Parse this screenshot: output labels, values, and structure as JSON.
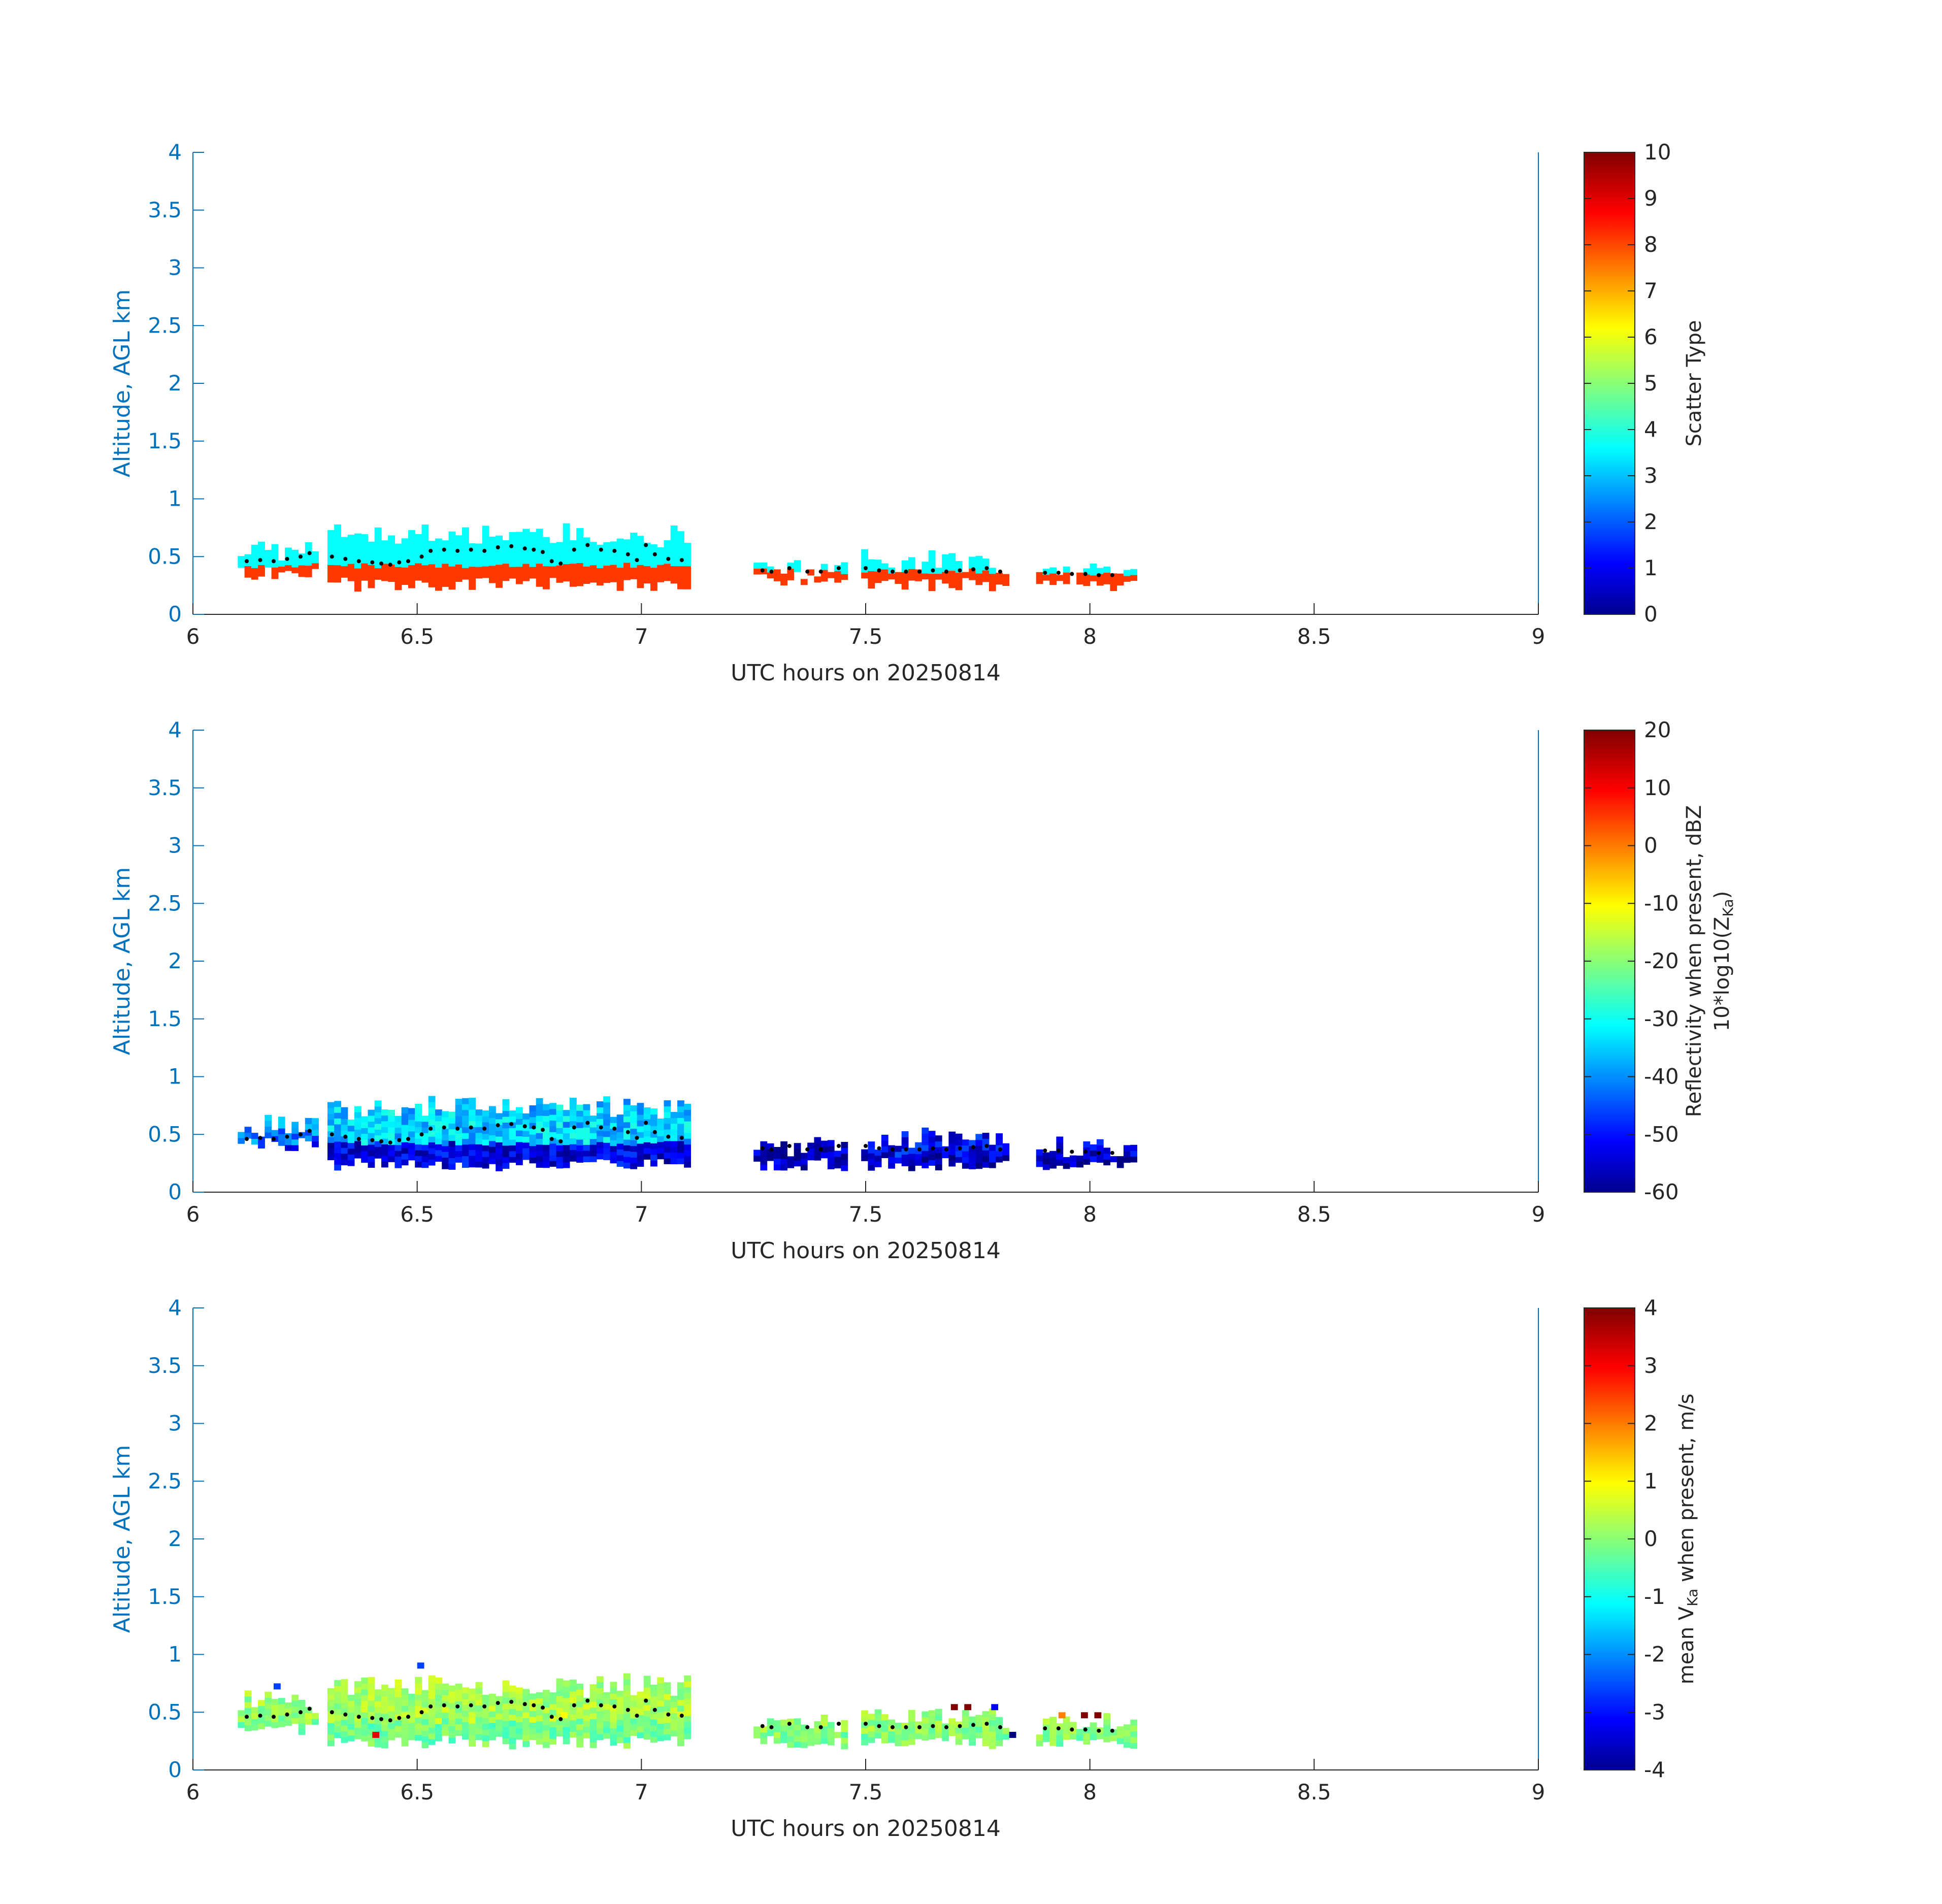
{
  "colors": {
    "axis_blue": "#0072BD",
    "text_dark": "#262626",
    "dots": "#000000"
  },
  "chart_data": [
    {
      "type": "heatmap",
      "xlabel": "UTC hours on 20250814",
      "ylabel": "Altitude, AGL km",
      "xlim": [
        6,
        9
      ],
      "ylim": [
        0,
        4
      ],
      "xticks": [
        "6",
        "6.5",
        "7",
        "7.5",
        "8",
        "8.5",
        "9"
      ],
      "yticks": [
        "0",
        "0.5",
        "1",
        "1.5",
        "2",
        "2.5",
        "3",
        "3.5",
        "4"
      ],
      "colorbar": {
        "label": "Scatter Type",
        "label_sub": "",
        "label_after": "",
        "label2": "",
        "label2_sub": "",
        "label2_after": "",
        "range": [
          0,
          10
        ],
        "ticks": [
          "0",
          "1",
          "2",
          "3",
          "4",
          "5",
          "6",
          "7",
          "8",
          "9",
          "10"
        ]
      },
      "segments": [
        {
          "x0": 6.1,
          "x1": 6.27,
          "top": 0.62,
          "bottom": 0.3,
          "value": 3.8,
          "low": 8.2,
          "lowTop": 0.4
        },
        {
          "x0": 6.3,
          "x1": 7.1,
          "top": 0.75,
          "bottom": 0.2,
          "value": 3.8,
          "low": 8.2,
          "lowTop": 0.4
        },
        {
          "x0": 7.25,
          "x1": 7.45,
          "top": 0.45,
          "bottom": 0.25,
          "value": 3.8,
          "low": 8.2,
          "lowTop": 0.35
        },
        {
          "x0": 7.49,
          "x1": 7.82,
          "top": 0.52,
          "bottom": 0.2,
          "value": 3.8,
          "low": 8.2,
          "lowTop": 0.35
        },
        {
          "x0": 7.88,
          "x1": 8.1,
          "top": 0.42,
          "bottom": 0.2,
          "value": 3.8,
          "low": 8.2,
          "lowTop": 0.32
        }
      ]
    },
    {
      "type": "heatmap",
      "xlabel": "UTC hours on 20250814",
      "ylabel": "Altitude, AGL km",
      "xlim": [
        6,
        9
      ],
      "ylim": [
        0,
        4
      ],
      "xticks": [
        "6",
        "6.5",
        "7",
        "7.5",
        "8",
        "8.5",
        "9"
      ],
      "yticks": [
        "0",
        "0.5",
        "1",
        "1.5",
        "2",
        "2.5",
        "3",
        "3.5",
        "4"
      ],
      "colorbar": {
        "label": "Reflectivity when present, dBZ",
        "label_sub": "",
        "label_after": "",
        "label2": "10*log10(Z",
        "label2_sub": "Ka",
        "label2_after": ")",
        "range": [
          -60,
          20
        ],
        "ticks": [
          "-60",
          "-50",
          "-40",
          "-30",
          "-20",
          "-10",
          "0",
          "10",
          "20"
        ]
      },
      "segments": [
        {
          "x0": 6.1,
          "x1": 6.27,
          "top": 0.65,
          "bottom": 0.35,
          "value": -40,
          "low": -52,
          "lowTop": 0.4
        },
        {
          "x0": 6.3,
          "x1": 7.1,
          "top": 0.8,
          "bottom": 0.18,
          "value": -34,
          "low": -52,
          "lowTop": 0.4
        },
        {
          "x0": 7.25,
          "x1": 7.45,
          "top": 0.45,
          "bottom": 0.18,
          "value": -55,
          "low": -55,
          "lowTop": 0.3
        },
        {
          "x0": 7.49,
          "x1": 7.82,
          "top": 0.52,
          "bottom": 0.18,
          "value": -50,
          "low": -55,
          "lowTop": 0.3
        },
        {
          "x0": 7.88,
          "x1": 8.1,
          "top": 0.45,
          "bottom": 0.18,
          "value": -52,
          "low": -55,
          "lowTop": 0.3
        }
      ]
    },
    {
      "type": "heatmap",
      "xlabel": "UTC hours on 20250814",
      "ylabel": "Altitude, AGL km",
      "xlim": [
        6,
        9
      ],
      "ylim": [
        0,
        4
      ],
      "xticks": [
        "6",
        "6.5",
        "7",
        "7.5",
        "8",
        "8.5",
        "9"
      ],
      "yticks": [
        "0",
        "0.5",
        "1",
        "1.5",
        "2",
        "2.5",
        "3",
        "3.5",
        "4"
      ],
      "colorbar": {
        "label": "mean V",
        "label_sub": "Ka",
        "label_after": " when present, m/s",
        "label2": "",
        "label2_sub": "",
        "label2_after": "",
        "range": [
          -4,
          4
        ],
        "ticks": [
          "-4",
          "-3",
          "-2",
          "-1",
          "0",
          "1",
          "2",
          "3",
          "4"
        ]
      },
      "segments": [
        {
          "x0": 6.1,
          "x1": 6.27,
          "top": 0.65,
          "bottom": 0.3,
          "value": 0.2,
          "low": 0.0,
          "lowTop": 0.4
        },
        {
          "x0": 6.3,
          "x1": 7.1,
          "top": 0.8,
          "bottom": 0.18,
          "value": 0.3,
          "low": -0.1,
          "lowTop": 0.4
        },
        {
          "x0": 7.25,
          "x1": 7.45,
          "top": 0.45,
          "bottom": 0.18,
          "value": 0.2,
          "low": 0.0,
          "lowTop": 0.3
        },
        {
          "x0": 7.49,
          "x1": 7.82,
          "top": 0.52,
          "bottom": 0.18,
          "value": 0.1,
          "low": 0.0,
          "lowTop": 0.3
        },
        {
          "x0": 7.88,
          "x1": 8.1,
          "top": 0.48,
          "bottom": 0.18,
          "value": 0.1,
          "low": 0.0,
          "lowTop": 0.3
        }
      ],
      "outliers": [
        {
          "x": 6.18,
          "y": 0.7,
          "value": -2.5
        },
        {
          "x": 6.4,
          "y": 0.28,
          "value": 3.2
        },
        {
          "x": 6.5,
          "y": 0.88,
          "value": -2.5
        },
        {
          "x": 6.82,
          "y": 0.45,
          "value": 1.0
        },
        {
          "x": 7.69,
          "y": 0.52,
          "value": 4.0
        },
        {
          "x": 7.72,
          "y": 0.52,
          "value": 4.0
        },
        {
          "x": 7.78,
          "y": 0.52,
          "value": -3.0
        },
        {
          "x": 7.82,
          "y": 0.28,
          "value": -4.0
        },
        {
          "x": 7.98,
          "y": 0.45,
          "value": 4.0
        },
        {
          "x": 8.01,
          "y": 0.45,
          "value": 4.0
        },
        {
          "x": 7.93,
          "y": 0.45,
          "value": 2.0
        }
      ]
    }
  ],
  "dots": [
    [
      6.12,
      0.46
    ],
    [
      6.15,
      0.47
    ],
    [
      6.18,
      0.46
    ],
    [
      6.21,
      0.48
    ],
    [
      6.24,
      0.5
    ],
    [
      6.26,
      0.53
    ],
    [
      6.31,
      0.5
    ],
    [
      6.34,
      0.48
    ],
    [
      6.37,
      0.46
    ],
    [
      6.4,
      0.45
    ],
    [
      6.42,
      0.44
    ],
    [
      6.44,
      0.43
    ],
    [
      6.46,
      0.45
    ],
    [
      6.48,
      0.46
    ],
    [
      6.51,
      0.5
    ],
    [
      6.53,
      0.55
    ],
    [
      6.56,
      0.56
    ],
    [
      6.59,
      0.55
    ],
    [
      6.62,
      0.56
    ],
    [
      6.65,
      0.55
    ],
    [
      6.68,
      0.58
    ],
    [
      6.71,
      0.59
    ],
    [
      6.74,
      0.57
    ],
    [
      6.76,
      0.56
    ],
    [
      6.78,
      0.54
    ],
    [
      6.8,
      0.46
    ],
    [
      6.82,
      0.44
    ],
    [
      6.85,
      0.56
    ],
    [
      6.88,
      0.6
    ],
    [
      6.91,
      0.56
    ],
    [
      6.94,
      0.55
    ],
    [
      6.97,
      0.52
    ],
    [
      6.99,
      0.47
    ],
    [
      7.01,
      0.6
    ],
    [
      7.03,
      0.52
    ],
    [
      7.06,
      0.48
    ],
    [
      7.09,
      0.47
    ],
    [
      7.27,
      0.38
    ],
    [
      7.29,
      0.37
    ],
    [
      7.33,
      0.4
    ],
    [
      7.37,
      0.37
    ],
    [
      7.4,
      0.37
    ],
    [
      7.44,
      0.4
    ],
    [
      7.5,
      0.4
    ],
    [
      7.53,
      0.38
    ],
    [
      7.56,
      0.37
    ],
    [
      7.59,
      0.37
    ],
    [
      7.62,
      0.37
    ],
    [
      7.65,
      0.38
    ],
    [
      7.68,
      0.37
    ],
    [
      7.71,
      0.38
    ],
    [
      7.74,
      0.39
    ],
    [
      7.77,
      0.4
    ],
    [
      7.8,
      0.37
    ],
    [
      7.9,
      0.36
    ],
    [
      7.93,
      0.36
    ],
    [
      7.96,
      0.35
    ],
    [
      7.99,
      0.35
    ],
    [
      8.02,
      0.34
    ],
    [
      8.05,
      0.34
    ]
  ]
}
